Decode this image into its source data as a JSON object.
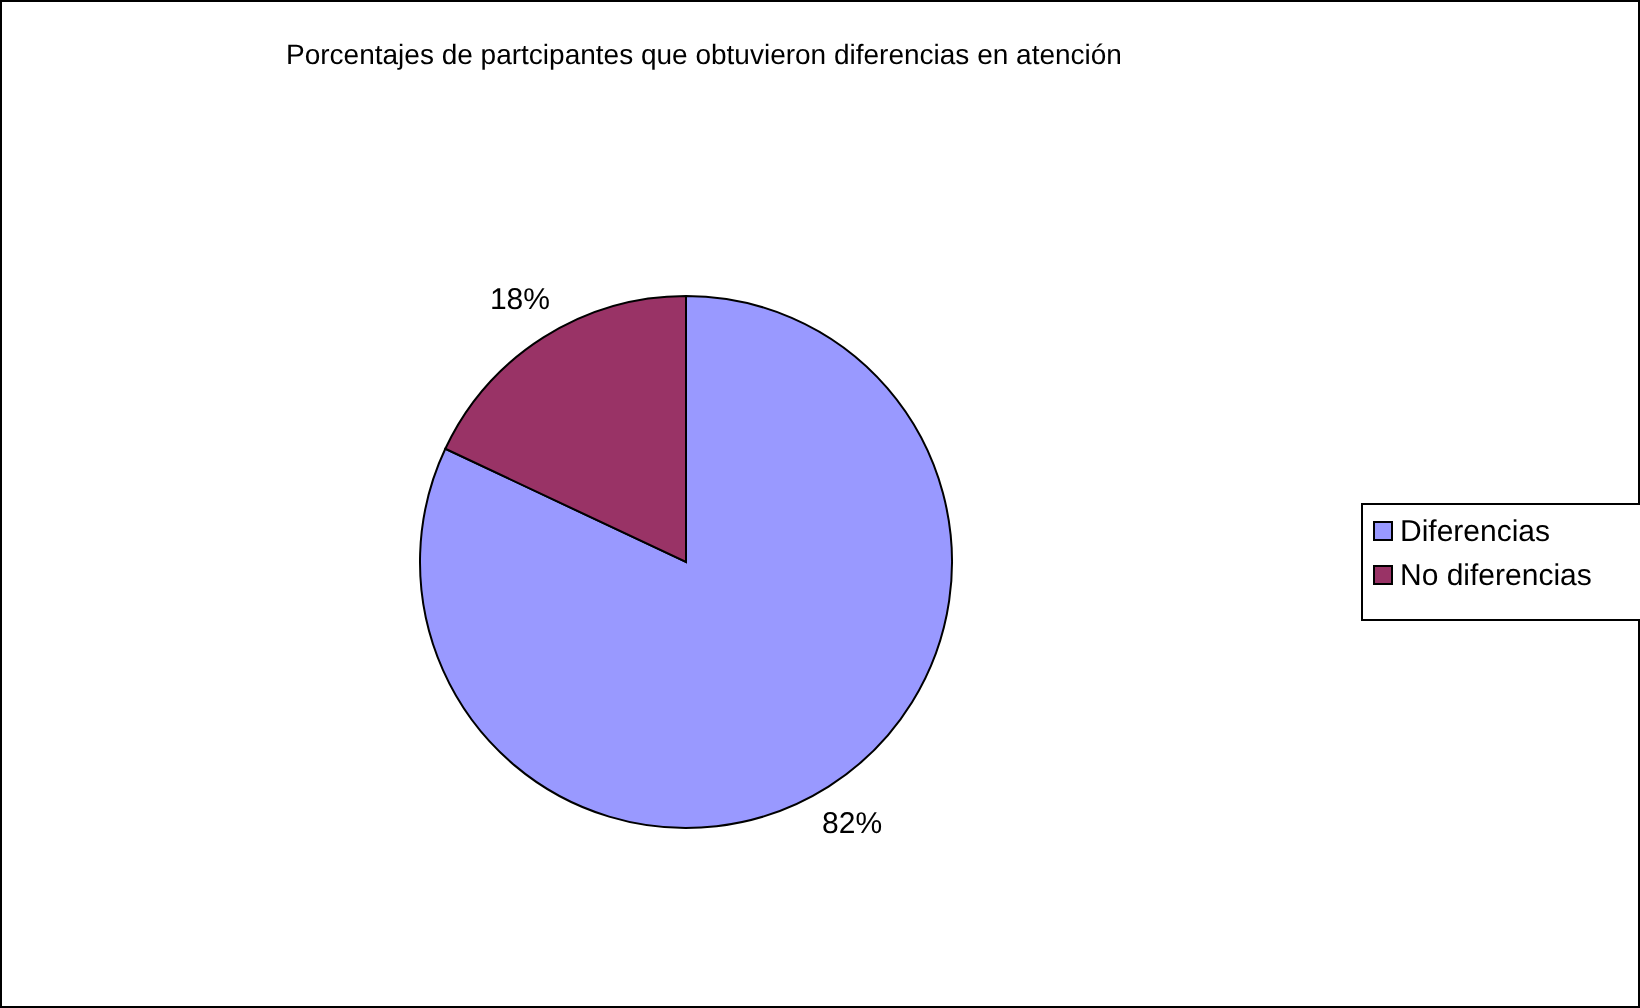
{
  "chart_data": {
    "type": "pie",
    "title": "Porcentajes de partcipantes que obtuvieron diferencias en atención",
    "categories": [
      "Diferencias",
      "No diferencias"
    ],
    "values": [
      82,
      18
    ],
    "colors": [
      "#9999ff",
      "#993366"
    ],
    "value_labels": [
      "82%",
      "18%"
    ],
    "legend": "right"
  }
}
